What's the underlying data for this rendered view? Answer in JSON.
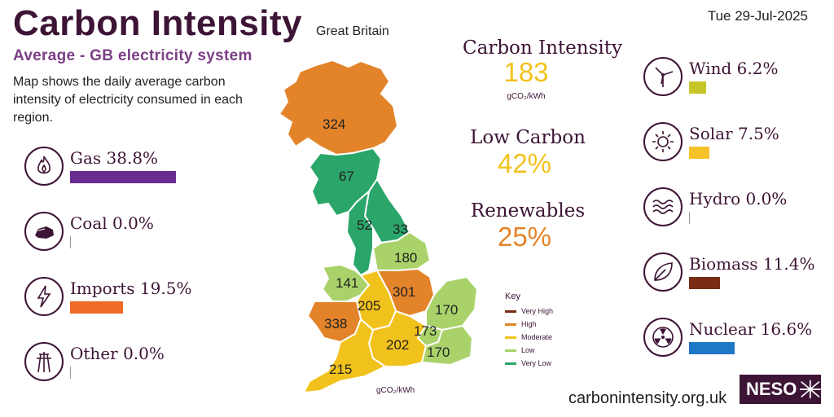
{
  "header": {
    "title": "Carbon Intensity",
    "region": "Great Britain",
    "subtitle": "Average - GB electricity system",
    "description": "Map shows the daily average carbon intensity of electricity consumed in each region.",
    "date": "Tue 29-Jul-2025"
  },
  "left_fuels": [
    {
      "name": "Gas",
      "label": "Gas 38.8%",
      "value": 38.8,
      "color": "#6b2c91",
      "icon": "flame-icon"
    },
    {
      "name": "Coal",
      "label": "Coal 0.0%",
      "value": 0.0,
      "color": "#999999",
      "icon": "coal-icon"
    },
    {
      "name": "Imports",
      "label": "Imports 19.5%",
      "value": 19.5,
      "color": "#ee6a25",
      "icon": "lightning-icon"
    },
    {
      "name": "Other",
      "label": "Other 0.0%",
      "value": 0.0,
      "color": "#999999",
      "icon": "pylon-icon"
    }
  ],
  "right_fuels": [
    {
      "name": "Wind",
      "label": "Wind 6.2%",
      "value": 6.2,
      "color": "#c6c62a",
      "icon": "wind-turbine-icon"
    },
    {
      "name": "Solar",
      "label": "Solar 7.5%",
      "value": 7.5,
      "color": "#f6c22a",
      "icon": "sun-icon"
    },
    {
      "name": "Hydro",
      "label": "Hydro 0.0%",
      "value": 0.0,
      "color": "#5aa0d0",
      "icon": "waves-icon"
    },
    {
      "name": "Biomass",
      "label": "Biomass 11.4%",
      "value": 11.4,
      "color": "#7a2d14",
      "icon": "leaf-icon"
    },
    {
      "name": "Nuclear",
      "label": "Nuclear 16.6%",
      "value": 16.6,
      "color": "#1f78c4",
      "icon": "radiation-icon"
    }
  ],
  "stats": {
    "carbon_intensity_label": "Carbon Intensity",
    "carbon_intensity_value": "183",
    "carbon_intensity_color": "#f2c21c",
    "unit": "gCO₂/kWh",
    "low_carbon_label": "Low Carbon",
    "low_carbon_value": "42%",
    "low_carbon_color": "#f2c21c",
    "renewables_label": "Renewables",
    "renewables_value": "25%",
    "renewables_color": "#e3842a"
  },
  "map": {
    "regions": [
      {
        "name": "north-scotland",
        "value": "324",
        "color": "#e3842a"
      },
      {
        "name": "south-scotland",
        "value": "67",
        "color": "#2aa66a"
      },
      {
        "name": "north-west-england",
        "value": "52",
        "color": "#2aa66a"
      },
      {
        "name": "north-east-england",
        "value": "33",
        "color": "#2aa66a"
      },
      {
        "name": "yorkshire",
        "value": "180",
        "color": "#a9d36a"
      },
      {
        "name": "north-wales",
        "value": "141",
        "color": "#a9d36a"
      },
      {
        "name": "west-midlands",
        "value": "205",
        "color": "#f2c21c"
      },
      {
        "name": "east-midlands",
        "value": "301",
        "color": "#e3842a"
      },
      {
        "name": "east-england",
        "value": "170",
        "color": "#a9d36a"
      },
      {
        "name": "south-wales",
        "value": "338",
        "color": "#e3842a"
      },
      {
        "name": "london",
        "value": "173",
        "color": "#a9d36a"
      },
      {
        "name": "south-england",
        "value": "202",
        "color": "#f2c21c"
      },
      {
        "name": "south-east-england",
        "value": "170",
        "color": "#a9d36a"
      },
      {
        "name": "south-west-england",
        "value": "215",
        "color": "#f2c21c"
      }
    ],
    "unit": "gCO₂/kWh"
  },
  "key": {
    "title": "Key",
    "items": [
      {
        "label": "Very High",
        "color": "#7a2d14"
      },
      {
        "label": "High",
        "color": "#e3842a"
      },
      {
        "label": "Moderate",
        "color": "#f2c21c"
      },
      {
        "label": "Low",
        "color": "#a9d36a"
      },
      {
        "label": "Very Low",
        "color": "#2aa66a"
      }
    ]
  },
  "footer": {
    "url": "carbonintensity.org.uk",
    "logo_text": "NESO"
  }
}
